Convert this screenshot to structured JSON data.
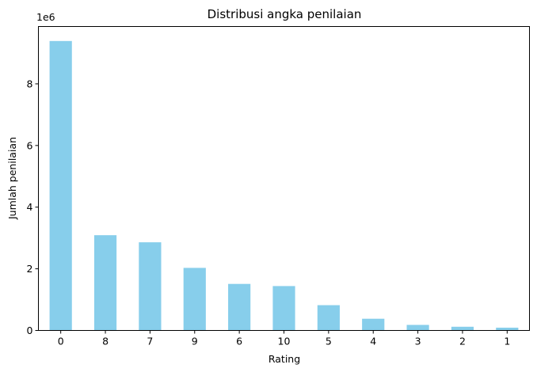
{
  "chart_data": {
    "type": "bar",
    "title": "Distribusi angka penilaian",
    "xlabel": "Rating",
    "ylabel": "Jumlah penilaian",
    "y_scale_label": "1e6",
    "categories": [
      "0",
      "8",
      "7",
      "9",
      "6",
      "10",
      "5",
      "4",
      "3",
      "2",
      "1"
    ],
    "values": [
      9390000,
      3090000,
      2860000,
      2030000,
      1510000,
      1440000,
      820000,
      380000,
      180000,
      120000,
      90000
    ],
    "yticks": [
      0,
      2,
      4,
      6,
      8
    ],
    "ylim": [
      0,
      9860000
    ],
    "legend": "none",
    "grid": false,
    "bar_color": "#87ceeb"
  }
}
